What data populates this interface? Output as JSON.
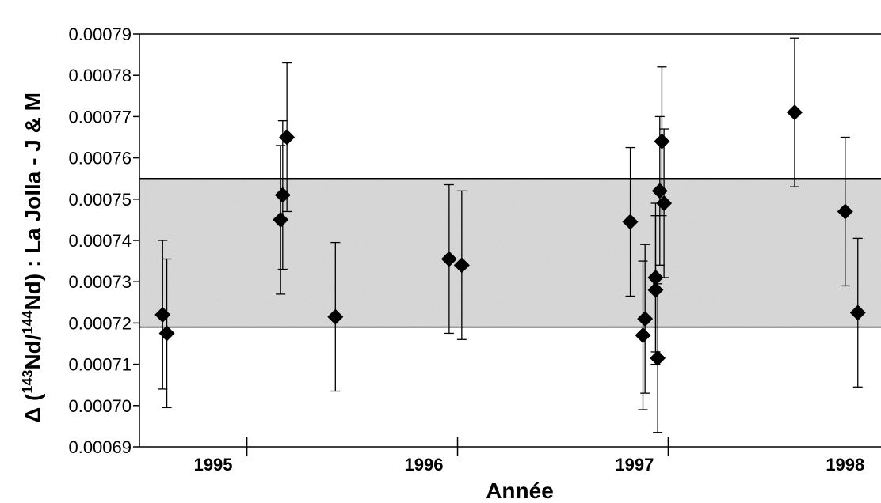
{
  "chart_data": {
    "type": "scatter",
    "title": "",
    "xlabel": "Année",
    "ylabel_parts": [
      "Δ (",
      "143",
      "Nd/",
      "144",
      "Nd) : La Jolla - J & M"
    ],
    "ylim": [
      0.00069,
      0.00079
    ],
    "yticks": [
      "0.00069",
      "0.00070",
      "0.00071",
      "0.00072",
      "0.00073",
      "0.00074",
      "0.00075",
      "0.00076",
      "0.00077",
      "0.00078",
      "0.00079"
    ],
    "xlim": [
      1994.9,
      1998.42
    ],
    "xtick_labels": [
      {
        "label": "1995",
        "x": 1995.25
      },
      {
        "label": "1996",
        "x": 1996.25
      },
      {
        "label": "1997",
        "x": 1997.25
      },
      {
        "label": "1998",
        "x": 1998.25
      }
    ],
    "year_boundaries": [
      1995.41,
      1996.41,
      1997.41
    ],
    "band": {
      "low": 0.000719,
      "high": 0.000755
    },
    "points": [
      {
        "x": 1995.01,
        "y": 0.000722,
        "err": 1.8e-05
      },
      {
        "x": 1995.03,
        "y": 0.0007175,
        "err": 1.8e-05
      },
      {
        "x": 1995.57,
        "y": 0.000745,
        "err": 1.8e-05
      },
      {
        "x": 1995.58,
        "y": 0.000751,
        "err": 1.8e-05
      },
      {
        "x": 1995.6,
        "y": 0.000765,
        "err": 1.8e-05
      },
      {
        "x": 1995.83,
        "y": 0.0007215,
        "err": 1.8e-05
      },
      {
        "x": 1996.37,
        "y": 0.0007355,
        "err": 1.8e-05
      },
      {
        "x": 1996.43,
        "y": 0.000734,
        "err": 1.8e-05
      },
      {
        "x": 1997.23,
        "y": 0.0007445,
        "err": 1.8e-05
      },
      {
        "x": 1997.3,
        "y": 0.000721,
        "err": 1.8e-05
      },
      {
        "x": 1997.29,
        "y": 0.000717,
        "err": 1.8e-05
      },
      {
        "x": 1997.35,
        "y": 0.000731,
        "err": 1.8e-05
      },
      {
        "x": 1997.35,
        "y": 0.000728,
        "err": 1.8e-05
      },
      {
        "x": 1997.36,
        "y": 0.0007115,
        "err": 1.8e-05
      },
      {
        "x": 1997.37,
        "y": 0.000752,
        "err": 1.8e-05
      },
      {
        "x": 1997.38,
        "y": 0.000764,
        "err": 1.8e-05
      },
      {
        "x": 1997.39,
        "y": 0.000749,
        "err": 1.8e-05
      },
      {
        "x": 1998.01,
        "y": 0.000771,
        "err": 1.8e-05
      },
      {
        "x": 1998.25,
        "y": 0.000747,
        "err": 1.8e-05
      },
      {
        "x": 1998.31,
        "y": 0.0007225,
        "err": 1.8e-05
      }
    ],
    "colors": {
      "band": "#d9d9d9",
      "marker": "#000000",
      "axis": "#000000"
    },
    "grid": false,
    "legend": "none"
  }
}
